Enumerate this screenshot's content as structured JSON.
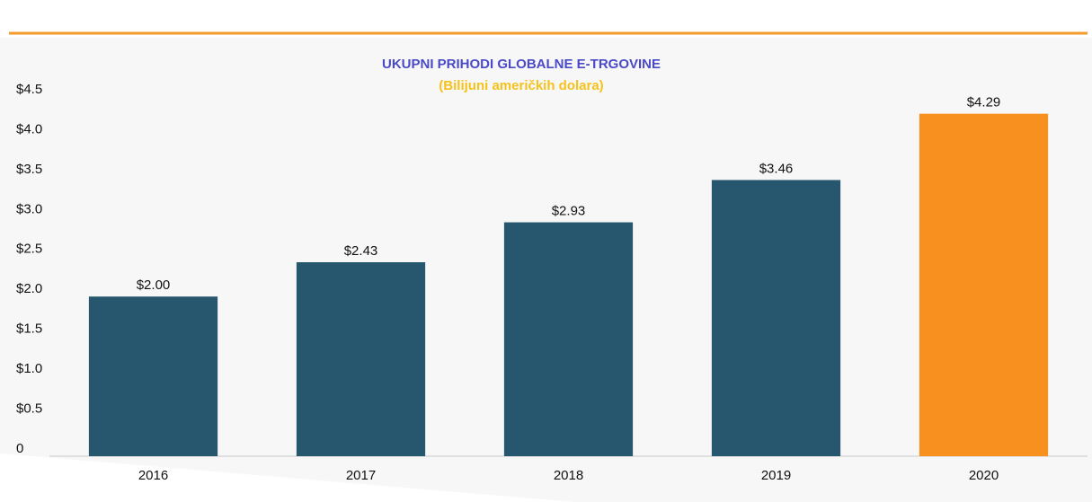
{
  "chart_data": {
    "type": "bar",
    "title": "UKUPNI PRIHODI GLOBALNE E-TRGOVINE",
    "subtitle": "(Bilijuni američkih dolara)",
    "categories": [
      "2016",
      "2017",
      "2018",
      "2019",
      "2020"
    ],
    "values": [
      2.0,
      2.43,
      2.93,
      3.46,
      4.29
    ],
    "value_labels": [
      "$2.00",
      "$2.43",
      "$2.93",
      "$3.46",
      "$4.29"
    ],
    "colors": [
      "#27576e",
      "#27576e",
      "#27576e",
      "#27576e",
      "#f7901e"
    ],
    "ylim": [
      0,
      4.5
    ],
    "yticks": [
      0,
      {
        "value": 0.5,
        "label": "$0.5"
      },
      {
        "value": 1,
        "label": "$1.0"
      },
      {
        "value": 1.5,
        "label": "$1.5"
      },
      {
        "value": 2,
        "label": "$2.0"
      },
      {
        "value": 2.5,
        "label": "$2.5"
      },
      {
        "value": 3,
        "label": "$3.0"
      },
      {
        "value": 3.5,
        "label": "$3.5"
      },
      {
        "value": 4,
        "label": "$4.0"
      },
      {
        "value": 4.5,
        "label": "$4.5"
      }
    ],
    "grid": false
  }
}
